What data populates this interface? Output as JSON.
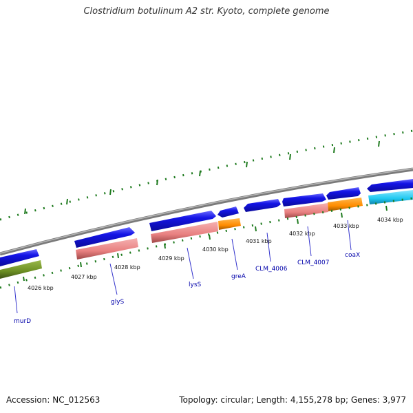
{
  "title": "Clostridium botulinum A2 str. Kyoto, complete genome",
  "footer": {
    "accession": "Accession: NC_012563",
    "summary": "Topology: circular; Length: 4,155,278 bp; Genes: 3,977"
  },
  "colors": {
    "backbone": "#8a8a8a",
    "forward_cds": "#1414e6",
    "rev_pink": "#e88080",
    "rev_orange": "#ff8c00",
    "rev_green": "#6b8e23",
    "rev_cyan": "#1ec8f0",
    "ticks": "#1e7a1e",
    "label_line": "#3333cc"
  },
  "scale_labels": [
    "4026 kbp",
    "4027 kbp",
    "4028 kbp",
    "4029 kbp",
    "4030 kbp",
    "4031 kbp",
    "4032 kbp",
    "4033 kbp",
    "4034 kbp"
  ],
  "gene_labels": [
    "murD",
    "glyS",
    "lysS",
    "greA",
    "CLM_4006",
    "CLM_4007",
    "coaX"
  ]
}
